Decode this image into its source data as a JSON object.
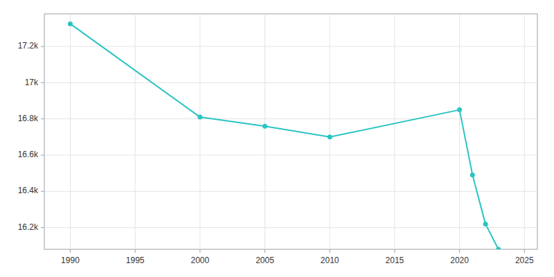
{
  "chart_data": {
    "type": "line",
    "x": [
      1990,
      2000,
      2005,
      2010,
      2020,
      2021,
      2022,
      2023
    ],
    "values": [
      17325,
      16810,
      16760,
      16700,
      16850,
      16490,
      16220,
      16080
    ],
    "color": "#2ac4c4",
    "marker": "circle",
    "xlim": [
      1988,
      2026
    ],
    "ylim": [
      16080,
      17380
    ],
    "xticks": [
      1990,
      1995,
      2000,
      2005,
      2010,
      2015,
      2020,
      2025
    ],
    "yticks": [
      {
        "value": 16200,
        "label": "16.2k"
      },
      {
        "value": 16400,
        "label": "16.4k"
      },
      {
        "value": 16600,
        "label": "16.6k"
      },
      {
        "value": 16800,
        "label": "16.8k"
      },
      {
        "value": 17000,
        "label": "17k"
      },
      {
        "value": 17200,
        "label": "17.2k"
      }
    ],
    "grid": true
  }
}
